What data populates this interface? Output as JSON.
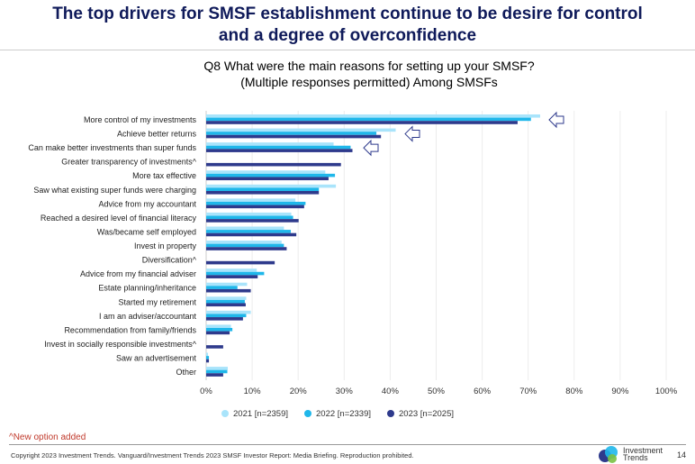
{
  "header": {
    "title_line1": "The top drivers for SMSF establishment continue to be desire for control",
    "title_line2": "and a degree of overconfidence"
  },
  "chart_data": {
    "type": "bar",
    "orientation": "horizontal",
    "title_line1": "Q8 What were the main reasons for setting up your SMSF?",
    "title_line2": "(Multiple responses permitted) Among SMSFs",
    "categories": [
      "More control of my investments",
      "Achieve better returns",
      "Can make better investments than super funds",
      "Greater transparency of investments^",
      "More tax effective",
      "Saw what existing super funds were charging",
      "Advice from my accountant",
      "Reached a desired level of financial literacy",
      "Was/became self employed",
      "Invest in property",
      "Diversification^",
      "Advice from my financial adviser",
      "Estate planning/inheritance",
      "Started my retirement",
      "I am an adviser/accountant",
      "Recommendation from family/friends",
      "Invest in socially responsible investments^",
      "Saw an advertisement",
      "Other"
    ],
    "series": [
      {
        "name": "2021 [n=2359]",
        "color": "#a9e4fb",
        "values": [
          72.6,
          41.2,
          27.7,
          null,
          25.9,
          28.2,
          19.4,
          18.5,
          16.9,
          16.4,
          null,
          11.0,
          8.9,
          8.7,
          9.7,
          5.4,
          null,
          0.4,
          4.7
        ]
      },
      {
        "name": "2022 [n=2339]",
        "color": "#1fb7ea",
        "values": [
          70.6,
          37.0,
          31.4,
          null,
          28.0,
          24.5,
          21.6,
          18.9,
          18.4,
          16.9,
          null,
          12.6,
          6.8,
          8.4,
          8.7,
          5.7,
          null,
          0.6,
          4.6
        ]
      },
      {
        "name": "2023 [n=2025]",
        "color": "#2e3a8c",
        "values": [
          67.7,
          38.0,
          31.8,
          29.3,
          26.6,
          24.5,
          21.3,
          20.1,
          19.6,
          17.5,
          14.9,
          11.2,
          9.7,
          8.6,
          8.0,
          5.1,
          3.7,
          0.6,
          3.7
        ]
      }
    ],
    "xlim": [
      0,
      100
    ],
    "xticks": [
      "0%",
      "10%",
      "20%",
      "30%",
      "40%",
      "50%",
      "60%",
      "70%",
      "80%",
      "90%",
      "100%"
    ],
    "grid": true,
    "legend_position": "bottom",
    "annotations": "arrow-left-icon pointing at top three rows"
  },
  "footer": {
    "note": "^New option added",
    "copyright": "Copyright 2023 Investment Trends. Vanguard/Investment Trends 2023 SMSF Investor Report: Media Briefing. Reproduction prohibited.",
    "logo_text": "Investment Trends",
    "page": "14"
  }
}
